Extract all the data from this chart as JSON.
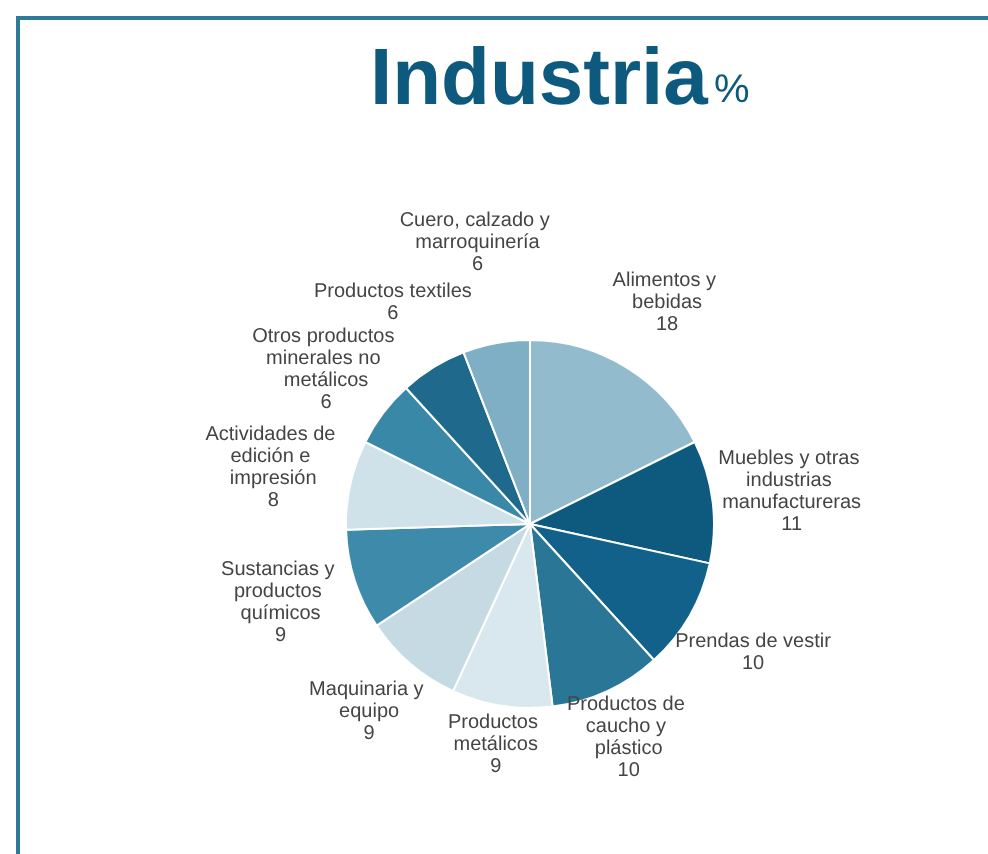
{
  "chart_data": {
    "type": "pie",
    "title": "Industria",
    "subtitle": "%",
    "categories": [
      "Alimentos y bebidas",
      "Muebles y otras industrias manufactureras",
      "Prendas de vestir",
      "Productos de caucho y plástico",
      "Productos metálicos",
      "Maquinaria y equipo",
      "Sustancias y productos químicos",
      "Actividades de edición e impresión",
      "Otros productos minerales no metálicos",
      "Productos textiles",
      "Cuero, calzado y marroquinería"
    ],
    "values": [
      18,
      11,
      10,
      10,
      9,
      9,
      9,
      8,
      6,
      6,
      6
    ],
    "colors": [
      "#92bccd",
      "#0d5a7e",
      "#11618a",
      "#2a7696",
      "#d9e8ee",
      "#c5dae3",
      "#3d8aaa",
      "#cfe2ea",
      "#3a88a8",
      "#1f6a8c",
      "#7fafc4"
    ],
    "data_labels": true,
    "legend": false
  }
}
